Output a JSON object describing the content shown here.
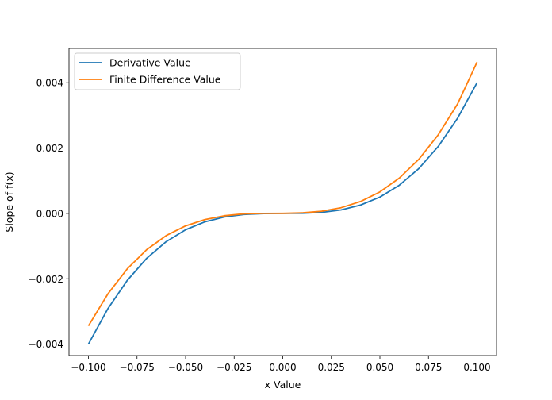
{
  "chart_data": {
    "type": "line",
    "title": "",
    "xlabel": "x Value",
    "ylabel": "Slope of f(x)",
    "xlim": [
      -0.11,
      0.11
    ],
    "ylim": [
      -0.00435,
      0.00505
    ],
    "grid": false,
    "legend_position": "top-left",
    "x_ticks": [
      -0.1,
      -0.075,
      -0.05,
      -0.025,
      0.0,
      0.025,
      0.05,
      0.075,
      0.1
    ],
    "x_tick_labels": [
      "−0.100",
      "−0.075",
      "−0.050",
      "−0.025",
      "0.000",
      "0.025",
      "0.050",
      "0.075",
      "0.100"
    ],
    "y_ticks": [
      -0.004,
      -0.002,
      0.0,
      0.002,
      0.004
    ],
    "y_tick_labels": [
      "−0.004",
      "−0.002",
      "0.000",
      "0.002",
      "0.004"
    ],
    "series": [
      {
        "name": "Derivative Value",
        "color": "#1f77b4",
        "x": [
          -0.1,
          -0.09,
          -0.08,
          -0.07,
          -0.06,
          -0.05,
          -0.04,
          -0.03,
          -0.02,
          -0.01,
          0.0,
          0.01,
          0.02,
          0.03,
          0.04,
          0.05,
          0.06,
          0.07,
          0.08,
          0.09,
          0.1
        ],
        "y": [
          -0.004,
          -0.002916,
          -0.002048,
          -0.001372,
          -0.000864,
          -0.0005,
          -0.000256,
          -0.000108,
          -3.2e-05,
          -4e-06,
          0.0,
          4e-06,
          3.2e-05,
          0.000108,
          0.000256,
          0.0005,
          0.000864,
          0.001372,
          0.002048,
          0.002916,
          0.004
        ]
      },
      {
        "name": "Finite Difference Value",
        "color": "#ff7f0e",
        "x": [
          -0.1,
          -0.09,
          -0.08,
          -0.07,
          -0.06,
          -0.05,
          -0.04,
          -0.03,
          -0.02,
          -0.01,
          0.0,
          0.01,
          0.02,
          0.03,
          0.04,
          0.05,
          0.06,
          0.07,
          0.08,
          0.09,
          0.1
        ],
        "y": [
          -0.00344,
          -0.002464,
          -0.001694,
          -0.001107,
          -0.000679,
          -0.000381,
          -0.000187,
          -7.1e-05,
          -1.3e-05,
          1e-06,
          3e-06,
          1.7e-05,
          6.7e-05,
          0.000175,
          0.000364,
          0.000659,
          0.001081,
          0.001655,
          0.002405,
          0.003352,
          0.00463
        ]
      }
    ]
  }
}
